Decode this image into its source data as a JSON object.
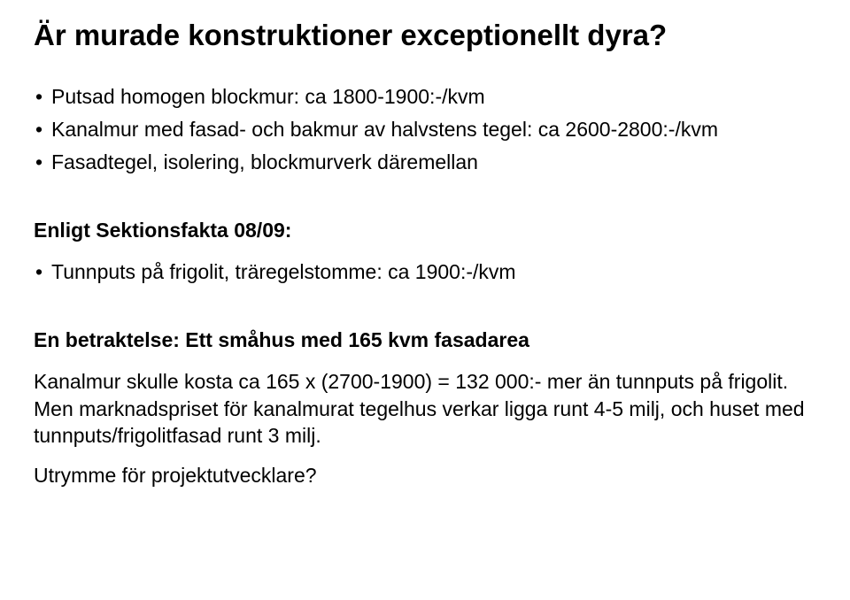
{
  "title": "Är murade konstruktioner exceptionellt dyra?",
  "section1": {
    "items": [
      "Putsad homogen blockmur:  ca 1800-1900:-/kvm",
      "Kanalmur med fasad- och bakmur av  halvstens tegel: ca 2600-2800:-/kvm",
      "Fasadtegel, isolering, blockmurverk däremellan"
    ]
  },
  "section2": {
    "heading": "Enligt Sektionsfakta 08/09:",
    "items": [
      "Tunnputs på frigolit, träregelstomme: ca 1900:-/kvm"
    ]
  },
  "section3": {
    "heading": "En betraktelse: Ett småhus med 165 kvm fasadarea",
    "p1": "Kanalmur skulle kosta ca 165 x (2700-1900) = 132 000:- mer än tunnputs på frigolit. Men marknadspriset för kanalmurat tegelhus verkar ligga runt  4-5 milj, och huset med tunnputs/frigolitfasad runt 3 milj.",
    "p2": "Utrymme för projektutvecklare?"
  }
}
